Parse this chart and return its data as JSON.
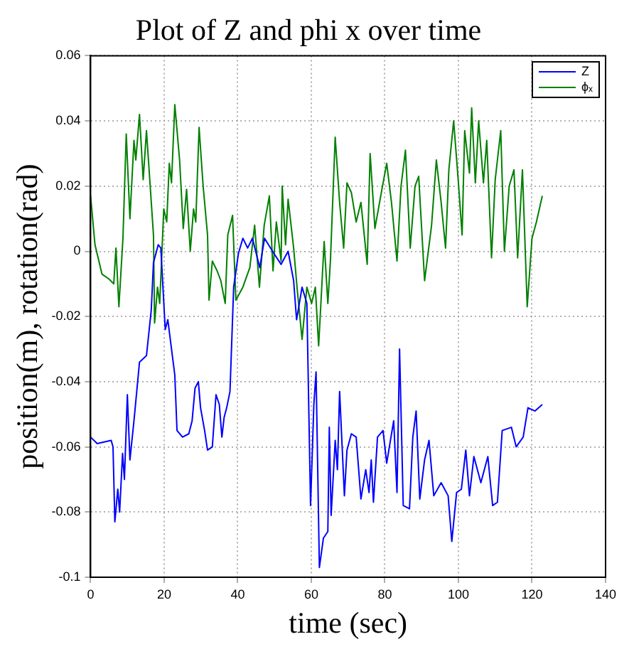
{
  "chart_data": {
    "type": "line",
    "title": "Plot of Z and phi x over time",
    "xlabel": "time (sec)",
    "ylabel": "position(m), rotation(rad)",
    "xlim": [
      0,
      140
    ],
    "xticks": [
      0,
      20,
      40,
      60,
      80,
      100,
      120,
      140
    ],
    "ylim": [
      -0.1,
      0.06
    ],
    "yticks": [
      -0.1,
      -0.08,
      -0.06,
      -0.04,
      -0.02,
      0,
      0.02,
      0.04,
      0.06
    ],
    "grid": true,
    "legend": "top right",
    "marker": "none",
    "line_style": "solid",
    "series": [
      {
        "name": "Z",
        "color": "#0000ff",
        "x": [
          0,
          1.8,
          5.6,
          6.1,
          6.6,
          7.4,
          7.9,
          8.7,
          9.2,
          10,
          10.7,
          11.8,
          13.3,
          15.2,
          16.5,
          17.1,
          18.4,
          19.1,
          20.3,
          21,
          22.9,
          23.5,
          25,
          26.7,
          27.6,
          28.4,
          29.3,
          29.9,
          31,
          31.8,
          33.1,
          34.1,
          35,
          35.7,
          36.3,
          37,
          37.9,
          38.9,
          40.2,
          41.4,
          42.7,
          44,
          46,
          47.3,
          49.8,
          51.8,
          53.7,
          55.2,
          56,
          57.5,
          58.8,
          59.8,
          60.7,
          61.3,
          62.2,
          63.3,
          64.5,
          64.9,
          65.4,
          66.5,
          67.1,
          67.7,
          69,
          69.7,
          70.9,
          72.2,
          73.5,
          74.8,
          75.7,
          76.3,
          76.9,
          78,
          79.5,
          80.5,
          82.4,
          83.3,
          84,
          85,
          86.7,
          87.6,
          88.5,
          89.5,
          90.8,
          92,
          93.3,
          95.3,
          97.2,
          98.2,
          99.5,
          100.8,
          102,
          103,
          104.2,
          106.1,
          108,
          109.3,
          110.6,
          111.9,
          114.4,
          115.7,
          117.6,
          118.9,
          120.8,
          122.8
        ],
        "values": [
          -0.057,
          -0.059,
          -0.058,
          -0.06,
          -0.083,
          -0.073,
          -0.08,
          -0.062,
          -0.07,
          -0.044,
          -0.064,
          -0.052,
          -0.034,
          -0.032,
          -0.018,
          -0.0035,
          0.002,
          0.001,
          -0.024,
          -0.021,
          -0.038,
          -0.055,
          -0.057,
          -0.056,
          -0.052,
          -0.042,
          -0.04,
          -0.048,
          -0.055,
          -0.061,
          -0.06,
          -0.044,
          -0.047,
          -0.057,
          -0.051,
          -0.048,
          -0.043,
          -0.011,
          -0.0006,
          0.004,
          0.001,
          0.004,
          -0.005,
          0.004,
          -0.0006,
          -0.004,
          0,
          -0.009,
          -0.021,
          -0.011,
          -0.016,
          -0.078,
          -0.047,
          -0.037,
          -0.097,
          -0.088,
          -0.086,
          -0.054,
          -0.081,
          -0.058,
          -0.067,
          -0.043,
          -0.075,
          -0.061,
          -0.056,
          -0.057,
          -0.076,
          -0.067,
          -0.074,
          -0.064,
          -0.077,
          -0.057,
          -0.055,
          -0.065,
          -0.052,
          -0.074,
          -0.03,
          -0.078,
          -0.079,
          -0.057,
          -0.049,
          -0.076,
          -0.064,
          -0.058,
          -0.075,
          -0.071,
          -0.075,
          -0.089,
          -0.074,
          -0.073,
          -0.061,
          -0.075,
          -0.063,
          -0.071,
          -0.063,
          -0.078,
          -0.077,
          -0.055,
          -0.054,
          -0.06,
          -0.057,
          -0.048,
          -0.049,
          -0.047
        ]
      },
      {
        "name": "ϕₓ",
        "color": "#008000",
        "x": [
          0,
          1.2,
          3.1,
          5,
          6.3,
          6.9,
          7.7,
          8.8,
          9.7,
          10.7,
          11.8,
          12.3,
          13.3,
          14.3,
          15.2,
          17.1,
          17.4,
          18.2,
          18.8,
          19.9,
          20.7,
          21.4,
          22,
          22.9,
          24.2,
          25.2,
          26.1,
          27.1,
          28,
          28.6,
          29.5,
          30.6,
          31.8,
          32.2,
          33.1,
          34.4,
          35.4,
          36.6,
          37.3,
          38.6,
          39.5,
          41.4,
          43.3,
          44.6,
          45.9,
          47.2,
          48.6,
          49.6,
          50.5,
          51.8,
          52.1,
          53,
          53.7,
          55.2,
          56.2,
          57.5,
          58.8,
          60.1,
          61.1,
          62,
          63.5,
          64.5,
          65.2,
          66.5,
          67.7,
          68.8,
          69.7,
          70.9,
          72.2,
          73.5,
          75.2,
          76,
          77.3,
          79.2,
          80.5,
          81.8,
          83.3,
          84.4,
          85.6,
          86.9,
          88.2,
          89.2,
          90.8,
          92.7,
          94,
          95.3,
          96.5,
          97.4,
          98.7,
          100,
          101,
          101.7,
          103,
          103.6,
          104.6,
          105.5,
          106.8,
          107.7,
          109,
          110,
          111.5,
          112.5,
          113.8,
          115.1,
          116.1,
          117.4,
          118.7,
          120,
          121.2,
          122.8
        ],
        "values": [
          0.017,
          0.002,
          -0.007,
          -0.0085,
          -0.01,
          0.001,
          -0.017,
          0.004,
          0.036,
          0.01,
          0.034,
          0.028,
          0.042,
          0.022,
          0.037,
          0.005,
          -0.022,
          -0.011,
          -0.016,
          0.013,
          0.009,
          0.027,
          0.021,
          0.045,
          0.028,
          0.007,
          0.019,
          0,
          0.013,
          0.009,
          0.038,
          0.02,
          0.005,
          -0.015,
          -0.003,
          -0.006,
          -0.009,
          -0.016,
          0.005,
          0.011,
          -0.015,
          -0.011,
          -0.005,
          0.008,
          -0.011,
          0.008,
          0.017,
          -0.006,
          0.009,
          -0.003,
          0.02,
          0.002,
          0.016,
          0.001,
          -0.012,
          -0.027,
          -0.011,
          -0.016,
          -0.011,
          -0.029,
          0.003,
          -0.016,
          -0.003,
          0.035,
          0.015,
          0.001,
          0.021,
          0.018,
          0.009,
          0.015,
          -0.004,
          0.03,
          0.007,
          0.019,
          0.027,
          0.015,
          -0.003,
          0.02,
          0.031,
          0.001,
          0.02,
          0.023,
          -0.009,
          0.008,
          0.028,
          0.015,
          0.001,
          0.025,
          0.04,
          0.021,
          0.005,
          0.037,
          0.024,
          0.044,
          0.021,
          0.04,
          0.021,
          0.034,
          -0.002,
          0.022,
          0.037,
          0,
          0.02,
          0.025,
          -0.002,
          0.025,
          -0.017,
          0.004,
          0.009,
          0.017
        ]
      }
    ]
  }
}
